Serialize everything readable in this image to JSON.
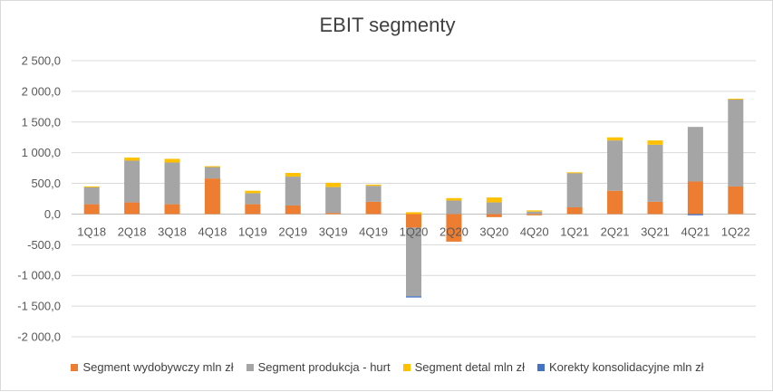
{
  "chart_data": {
    "type": "bar",
    "stacked": true,
    "title": "EBIT segmenty",
    "xlabel": "",
    "ylabel": "",
    "ylim": [
      -2000,
      2500
    ],
    "y_ticks": [
      2500,
      2000,
      1500,
      1000,
      500,
      0,
      -500,
      -1000,
      -1500,
      -2000
    ],
    "y_tick_labels": [
      "2 500,0",
      "2 000,0",
      "1 500,0",
      "1 000,0",
      "500,0",
      "0,0",
      "-500,0",
      "-1 000,0",
      "-1 500,0",
      "-2 000,0"
    ],
    "grid": true,
    "legend_position": "bottom",
    "categories": [
      "1Q18",
      "2Q18",
      "3Q18",
      "4Q18",
      "1Q19",
      "2Q19",
      "3Q19",
      "4Q19",
      "1Q20",
      "2Q20",
      "3Q20",
      "4Q20",
      "1Q21",
      "2Q21",
      "3Q21",
      "4Q21",
      "1Q22"
    ],
    "series": [
      {
        "name": "Segment wydobywczy mln zł",
        "color": "#ed7d31",
        "values": [
          160,
          190,
          160,
          580,
          160,
          140,
          20,
          200,
          -220,
          -450,
          -50,
          -20,
          110,
          380,
          200,
          530,
          450
        ]
      },
      {
        "name": "Segment produkcja - hurt",
        "color": "#a5a5a5",
        "values": [
          280,
          680,
          680,
          190,
          180,
          470,
          420,
          260,
          -1120,
          220,
          190,
          40,
          560,
          820,
          930,
          890,
          1420
        ]
      },
      {
        "name": "Segment detal mln zł",
        "color": "#ffc000",
        "values": [
          10,
          50,
          60,
          10,
          40,
          60,
          70,
          20,
          30,
          40,
          80,
          20,
          10,
          50,
          70,
          0,
          10
        ]
      },
      {
        "name": "Korekty konsolidacyjne mln zł",
        "color": "#4472c4",
        "values": [
          0,
          0,
          0,
          0,
          0,
          0,
          0,
          0,
          -20,
          0,
          0,
          0,
          0,
          0,
          0,
          -20,
          0
        ]
      }
    ]
  }
}
